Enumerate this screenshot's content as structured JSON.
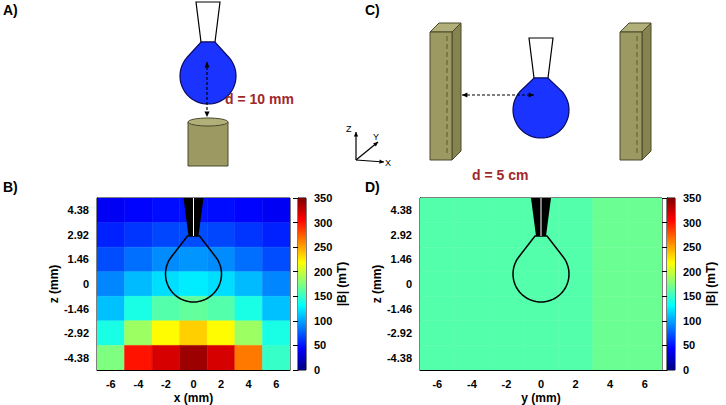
{
  "chart_data": [
    {
      "type": "heatmap",
      "panel": "B)",
      "x_label": "x (mm)",
      "y_label": "z (mm)",
      "x": [
        -6,
        -4,
        -2,
        0,
        2,
        4,
        6
      ],
      "y": [
        4.38,
        2.92,
        1.46,
        0,
        -1.46,
        -2.92,
        -4.38
      ],
      "cells": [
        [
          40,
          45,
          48,
          50,
          48,
          45,
          40
        ],
        [
          55,
          62,
          68,
          70,
          68,
          62,
          55
        ],
        [
          70,
          82,
          92,
          95,
          92,
          82,
          70
        ],
        [
          90,
          108,
          120,
          125,
          120,
          108,
          90
        ],
        [
          110,
          140,
          160,
          165,
          160,
          140,
          110
        ],
        [
          140,
          185,
          220,
          235,
          220,
          185,
          140
        ],
        [
          175,
          300,
          320,
          340,
          320,
          265,
          150
        ]
      ],
      "xlim": [
        -7,
        7
      ],
      "xticks": [
        -6,
        -4,
        -2,
        0,
        2,
        4,
        6
      ],
      "ylim": [
        -5.11,
        5.11
      ],
      "yticks": [
        -4.38,
        -2.92,
        -1.46,
        0,
        1.46,
        2.92,
        4.38
      ],
      "colorbar": {
        "label": "|B| (mT)",
        "range": [
          0,
          350
        ],
        "ticks": [
          0,
          50,
          100,
          150,
          200,
          250,
          300,
          350
        ]
      }
    },
    {
      "type": "heatmap",
      "panel": "D)",
      "x_label": "y (mm)",
      "y_label": "z (mm)",
      "x": [
        -6,
        -4,
        -2,
        0,
        2,
        4,
        6
      ],
      "y": [
        4.38,
        2.92,
        1.46,
        0,
        -1.46,
        -2.92,
        -4.38
      ],
      "cells": [
        [
          160,
          160,
          160,
          160,
          160,
          168,
          168
        ],
        [
          160,
          160,
          160,
          160,
          160,
          168,
          168
        ],
        [
          160,
          160,
          160,
          160,
          160,
          168,
          168
        ],
        [
          160,
          160,
          160,
          160,
          160,
          168,
          168
        ],
        [
          160,
          160,
          160,
          160,
          160,
          168,
          168
        ],
        [
          160,
          160,
          160,
          160,
          160,
          168,
          168
        ],
        [
          160,
          160,
          160,
          160,
          160,
          168,
          168
        ]
      ],
      "xlim": [
        -7,
        7
      ],
      "xticks": [
        -6,
        -4,
        -2,
        0,
        2,
        4,
        6
      ],
      "ylim": [
        -5.11,
        5.11
      ],
      "yticks": [
        -4.38,
        -2.92,
        -1.46,
        0,
        1.46,
        2.92,
        4.38
      ],
      "colorbar": {
        "label": "|B| (mT)",
        "range": [
          0,
          350
        ],
        "ticks": [
          0,
          50,
          100,
          150,
          200,
          250,
          300,
          350
        ]
      }
    }
  ],
  "diagrams": [
    {
      "panel": "A)",
      "annotation": "d = 10 mm"
    },
    {
      "panel": "C)",
      "annotation": "d = 5 cm",
      "axis_labels": [
        "Z",
        "Y",
        "X"
      ]
    }
  ]
}
